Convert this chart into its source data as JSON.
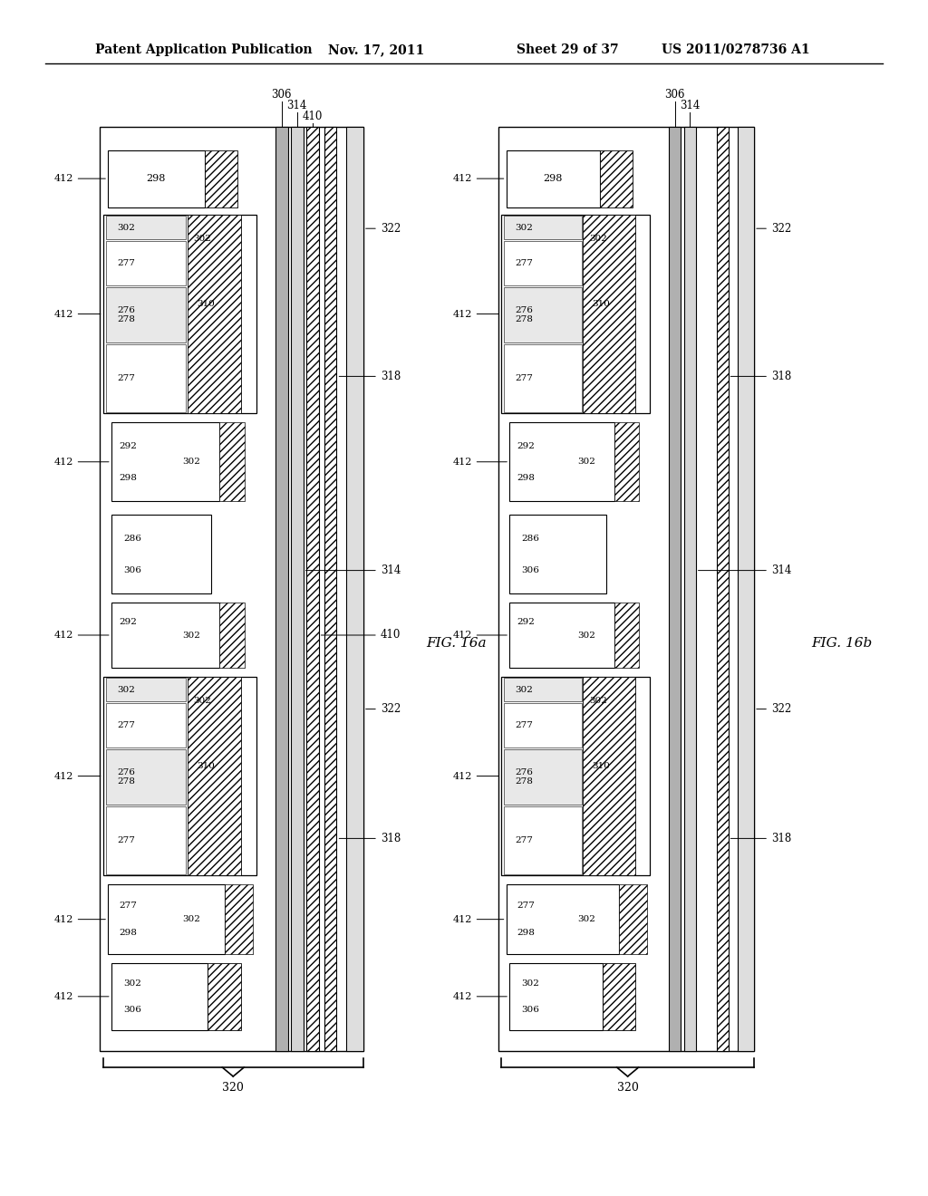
{
  "page_header": {
    "left": "Patent Application Publication",
    "center": "Nov. 17, 2011",
    "right_sheet": "Sheet 29 of 37",
    "right_patent": "US 2011/0278736 A1"
  },
  "fig_16a_label": "FIG. 16a",
  "fig_16b_label": "FIG. 16b",
  "background_color": "#ffffff",
  "line_color": "#000000"
}
